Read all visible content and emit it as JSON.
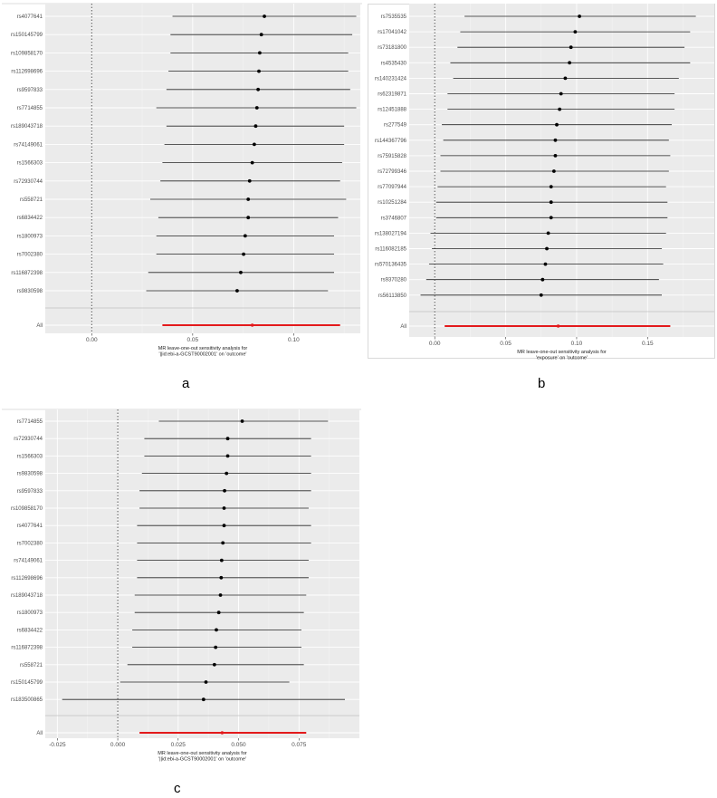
{
  "chart_data": [
    {
      "type": "forest",
      "panel_label": "a",
      "xlabel": [
        "MR leave-one-out sensitivity analysis for",
        "'||id:ebi-a-GCST90002001' on 'outcome'"
      ],
      "xlim": [
        -0.023,
        0.133
      ],
      "xticks": [
        0.0,
        0.05,
        0.1
      ],
      "xtick_labels": [
        "0.00",
        "0.05",
        "0.10"
      ],
      "zero_line": true,
      "rows": [
        {
          "label": "rs4077641",
          "estimate": 0.0855,
          "lower": 0.04,
          "upper": 0.131
        },
        {
          "label": "rs150145799",
          "estimate": 0.084,
          "lower": 0.039,
          "upper": 0.129
        },
        {
          "label": "rs109858170",
          "estimate": 0.0832,
          "lower": 0.039,
          "upper": 0.127
        },
        {
          "label": "rs112698696",
          "estimate": 0.0828,
          "lower": 0.038,
          "upper": 0.127
        },
        {
          "label": "rs9597833",
          "estimate": 0.0824,
          "lower": 0.037,
          "upper": 0.128
        },
        {
          "label": "rs7714855",
          "estimate": 0.0818,
          "lower": 0.032,
          "upper": 0.131
        },
        {
          "label": "rs189043718",
          "estimate": 0.0812,
          "lower": 0.037,
          "upper": 0.125
        },
        {
          "label": "rs74149061",
          "estimate": 0.0805,
          "lower": 0.036,
          "upper": 0.125
        },
        {
          "label": "rs1566303",
          "estimate": 0.0795,
          "lower": 0.035,
          "upper": 0.124
        },
        {
          "label": "rs72930744",
          "estimate": 0.0782,
          "lower": 0.034,
          "upper": 0.123
        },
        {
          "label": "rs558721",
          "estimate": 0.0775,
          "lower": 0.029,
          "upper": 0.126
        },
        {
          "label": "rs6834422",
          "estimate": 0.0775,
          "lower": 0.033,
          "upper": 0.122
        },
        {
          "label": "rs1800973",
          "estimate": 0.076,
          "lower": 0.032,
          "upper": 0.12
        },
        {
          "label": "rs7002380",
          "estimate": 0.0752,
          "lower": 0.032,
          "upper": 0.12
        },
        {
          "label": "rs116872398",
          "estimate": 0.0738,
          "lower": 0.028,
          "upper": 0.12
        },
        {
          "label": "rs9830598",
          "estimate": 0.072,
          "lower": 0.027,
          "upper": 0.117
        }
      ],
      "overall": {
        "label": "All",
        "estimate": 0.0795,
        "lower": 0.035,
        "upper": 0.123
      }
    },
    {
      "type": "forest",
      "panel_label": "b",
      "xlabel": [
        "MR leave-one-out sensitivity analysis for",
        "'exposure' on 'outcome'"
      ],
      "xlim": [
        -0.018,
        0.197
      ],
      "xticks": [
        0.0,
        0.05,
        0.1,
        0.15
      ],
      "xtick_labels": [
        "0.00",
        "0.05",
        "0.10",
        "0.15"
      ],
      "zero_line": true,
      "rows": [
        {
          "label": "rs7535535",
          "estimate": 0.102,
          "lower": 0.021,
          "upper": 0.184
        },
        {
          "label": "rs17041042",
          "estimate": 0.099,
          "lower": 0.018,
          "upper": 0.18
        },
        {
          "label": "rs73181800",
          "estimate": 0.096,
          "lower": 0.016,
          "upper": 0.176
        },
        {
          "label": "rs4535430",
          "estimate": 0.095,
          "lower": 0.011,
          "upper": 0.18
        },
        {
          "label": "rs140231424",
          "estimate": 0.092,
          "lower": 0.013,
          "upper": 0.172
        },
        {
          "label": "rs62319871",
          "estimate": 0.089,
          "lower": 0.009,
          "upper": 0.169
        },
        {
          "label": "rs12451888",
          "estimate": 0.088,
          "lower": 0.009,
          "upper": 0.169
        },
        {
          "label": "rs277549",
          "estimate": 0.086,
          "lower": 0.005,
          "upper": 0.167
        },
        {
          "label": "rs144367796",
          "estimate": 0.085,
          "lower": 0.006,
          "upper": 0.165
        },
        {
          "label": "rs75915828",
          "estimate": 0.085,
          "lower": 0.004,
          "upper": 0.166
        },
        {
          "label": "rs72799346",
          "estimate": 0.084,
          "lower": 0.004,
          "upper": 0.165
        },
        {
          "label": "rs77097944",
          "estimate": 0.082,
          "lower": 0.002,
          "upper": 0.163
        },
        {
          "label": "rs10251284",
          "estimate": 0.082,
          "lower": 0.001,
          "upper": 0.164
        },
        {
          "label": "rs3746807",
          "estimate": 0.082,
          "lower": 0.001,
          "upper": 0.164
        },
        {
          "label": "rs138027194",
          "estimate": 0.08,
          "lower": -0.003,
          "upper": 0.163
        },
        {
          "label": "rs116082185",
          "estimate": 0.079,
          "lower": -0.002,
          "upper": 0.16
        },
        {
          "label": "rs570136435",
          "estimate": 0.078,
          "lower": -0.004,
          "upper": 0.161
        },
        {
          "label": "rs9370280",
          "estimate": 0.076,
          "lower": -0.006,
          "upper": 0.158
        },
        {
          "label": "rs56113850",
          "estimate": 0.075,
          "lower": -0.01,
          "upper": 0.16
        }
      ],
      "overall": {
        "label": "All",
        "estimate": 0.087,
        "lower": 0.007,
        "upper": 0.166
      }
    },
    {
      "type": "forest",
      "panel_label": "c",
      "xlabel": [
        "MR leave-one-out sensitivity analysis for",
        "'||id:ebi-a-GCST90002001' on 'outcome'"
      ],
      "xlim": [
        -0.03,
        0.1
      ],
      "xticks": [
        -0.025,
        0.0,
        0.025,
        0.05,
        0.075
      ],
      "xtick_labels": [
        "-0.025",
        "0.000",
        "0.025",
        "0.050",
        "0.075"
      ],
      "zero_line": true,
      "rows": [
        {
          "label": "rs7714855",
          "estimate": 0.0515,
          "lower": 0.017,
          "upper": 0.087
        },
        {
          "label": "rs72930744",
          "estimate": 0.0455,
          "lower": 0.011,
          "upper": 0.08
        },
        {
          "label": "rs1566303",
          "estimate": 0.0455,
          "lower": 0.011,
          "upper": 0.08
        },
        {
          "label": "rs9830598",
          "estimate": 0.045,
          "lower": 0.01,
          "upper": 0.08
        },
        {
          "label": "rs9597833",
          "estimate": 0.0442,
          "lower": 0.009,
          "upper": 0.08
        },
        {
          "label": "rs109858170",
          "estimate": 0.044,
          "lower": 0.009,
          "upper": 0.079
        },
        {
          "label": "rs4077641",
          "estimate": 0.044,
          "lower": 0.008,
          "upper": 0.08
        },
        {
          "label": "rs7002380",
          "estimate": 0.0435,
          "lower": 0.008,
          "upper": 0.08
        },
        {
          "label": "rs74149061",
          "estimate": 0.043,
          "lower": 0.008,
          "upper": 0.079
        },
        {
          "label": "rs112698696",
          "estimate": 0.0428,
          "lower": 0.008,
          "upper": 0.079
        },
        {
          "label": "rs189043718",
          "estimate": 0.0425,
          "lower": 0.007,
          "upper": 0.078
        },
        {
          "label": "rs1800973",
          "estimate": 0.0418,
          "lower": 0.007,
          "upper": 0.077
        },
        {
          "label": "rs6834422",
          "estimate": 0.0408,
          "lower": 0.006,
          "upper": 0.076
        },
        {
          "label": "rs116872398",
          "estimate": 0.0405,
          "lower": 0.006,
          "upper": 0.076
        },
        {
          "label": "rs558721",
          "estimate": 0.04,
          "lower": 0.004,
          "upper": 0.077
        },
        {
          "label": "rs150145799",
          "estimate": 0.0365,
          "lower": 0.001,
          "upper": 0.071
        },
        {
          "label": "rs183500865",
          "estimate": 0.0355,
          "lower": -0.023,
          "upper": 0.094
        }
      ],
      "overall": {
        "label": "All",
        "estimate": 0.0432,
        "lower": 0.009,
        "upper": 0.078
      }
    }
  ]
}
